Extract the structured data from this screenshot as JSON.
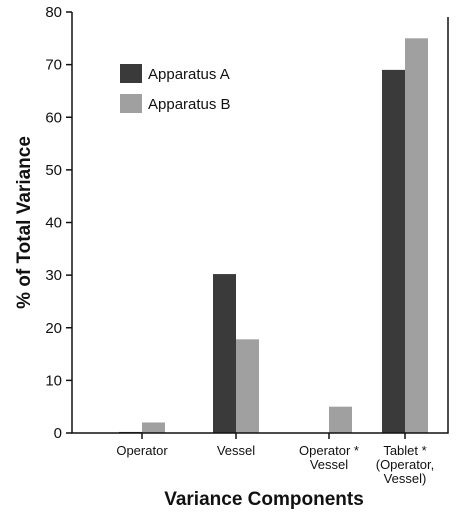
{
  "chart_data": {
    "type": "bar",
    "categories": [
      "Operator",
      "Vessel",
      "Operator * Vessel",
      "Tablet * (Operator, Vessel)"
    ],
    "category_label_lines": [
      [
        "Operator"
      ],
      [
        "Vessel"
      ],
      [
        "Operator *",
        "Vessel"
      ],
      [
        "Tablet *",
        "(Operator,",
        "Vessel)"
      ]
    ],
    "series": [
      {
        "name": "Apparatus A",
        "values": [
          0.2,
          30.2,
          0,
          69
        ],
        "color": "#3a3a3a"
      },
      {
        "name": "Apparatus B",
        "values": [
          2,
          17.8,
          5,
          75
        ],
        "color": "#a0a0a0"
      }
    ],
    "xlabel": "Variance Components",
    "ylabel": "% of Total Variance",
    "ylim": [
      0,
      80
    ],
    "yticks": [
      "0",
      "10",
      "20",
      "30",
      "40",
      "50",
      "60",
      "70",
      "80"
    ],
    "grid": false,
    "legend_position": "top-left"
  }
}
